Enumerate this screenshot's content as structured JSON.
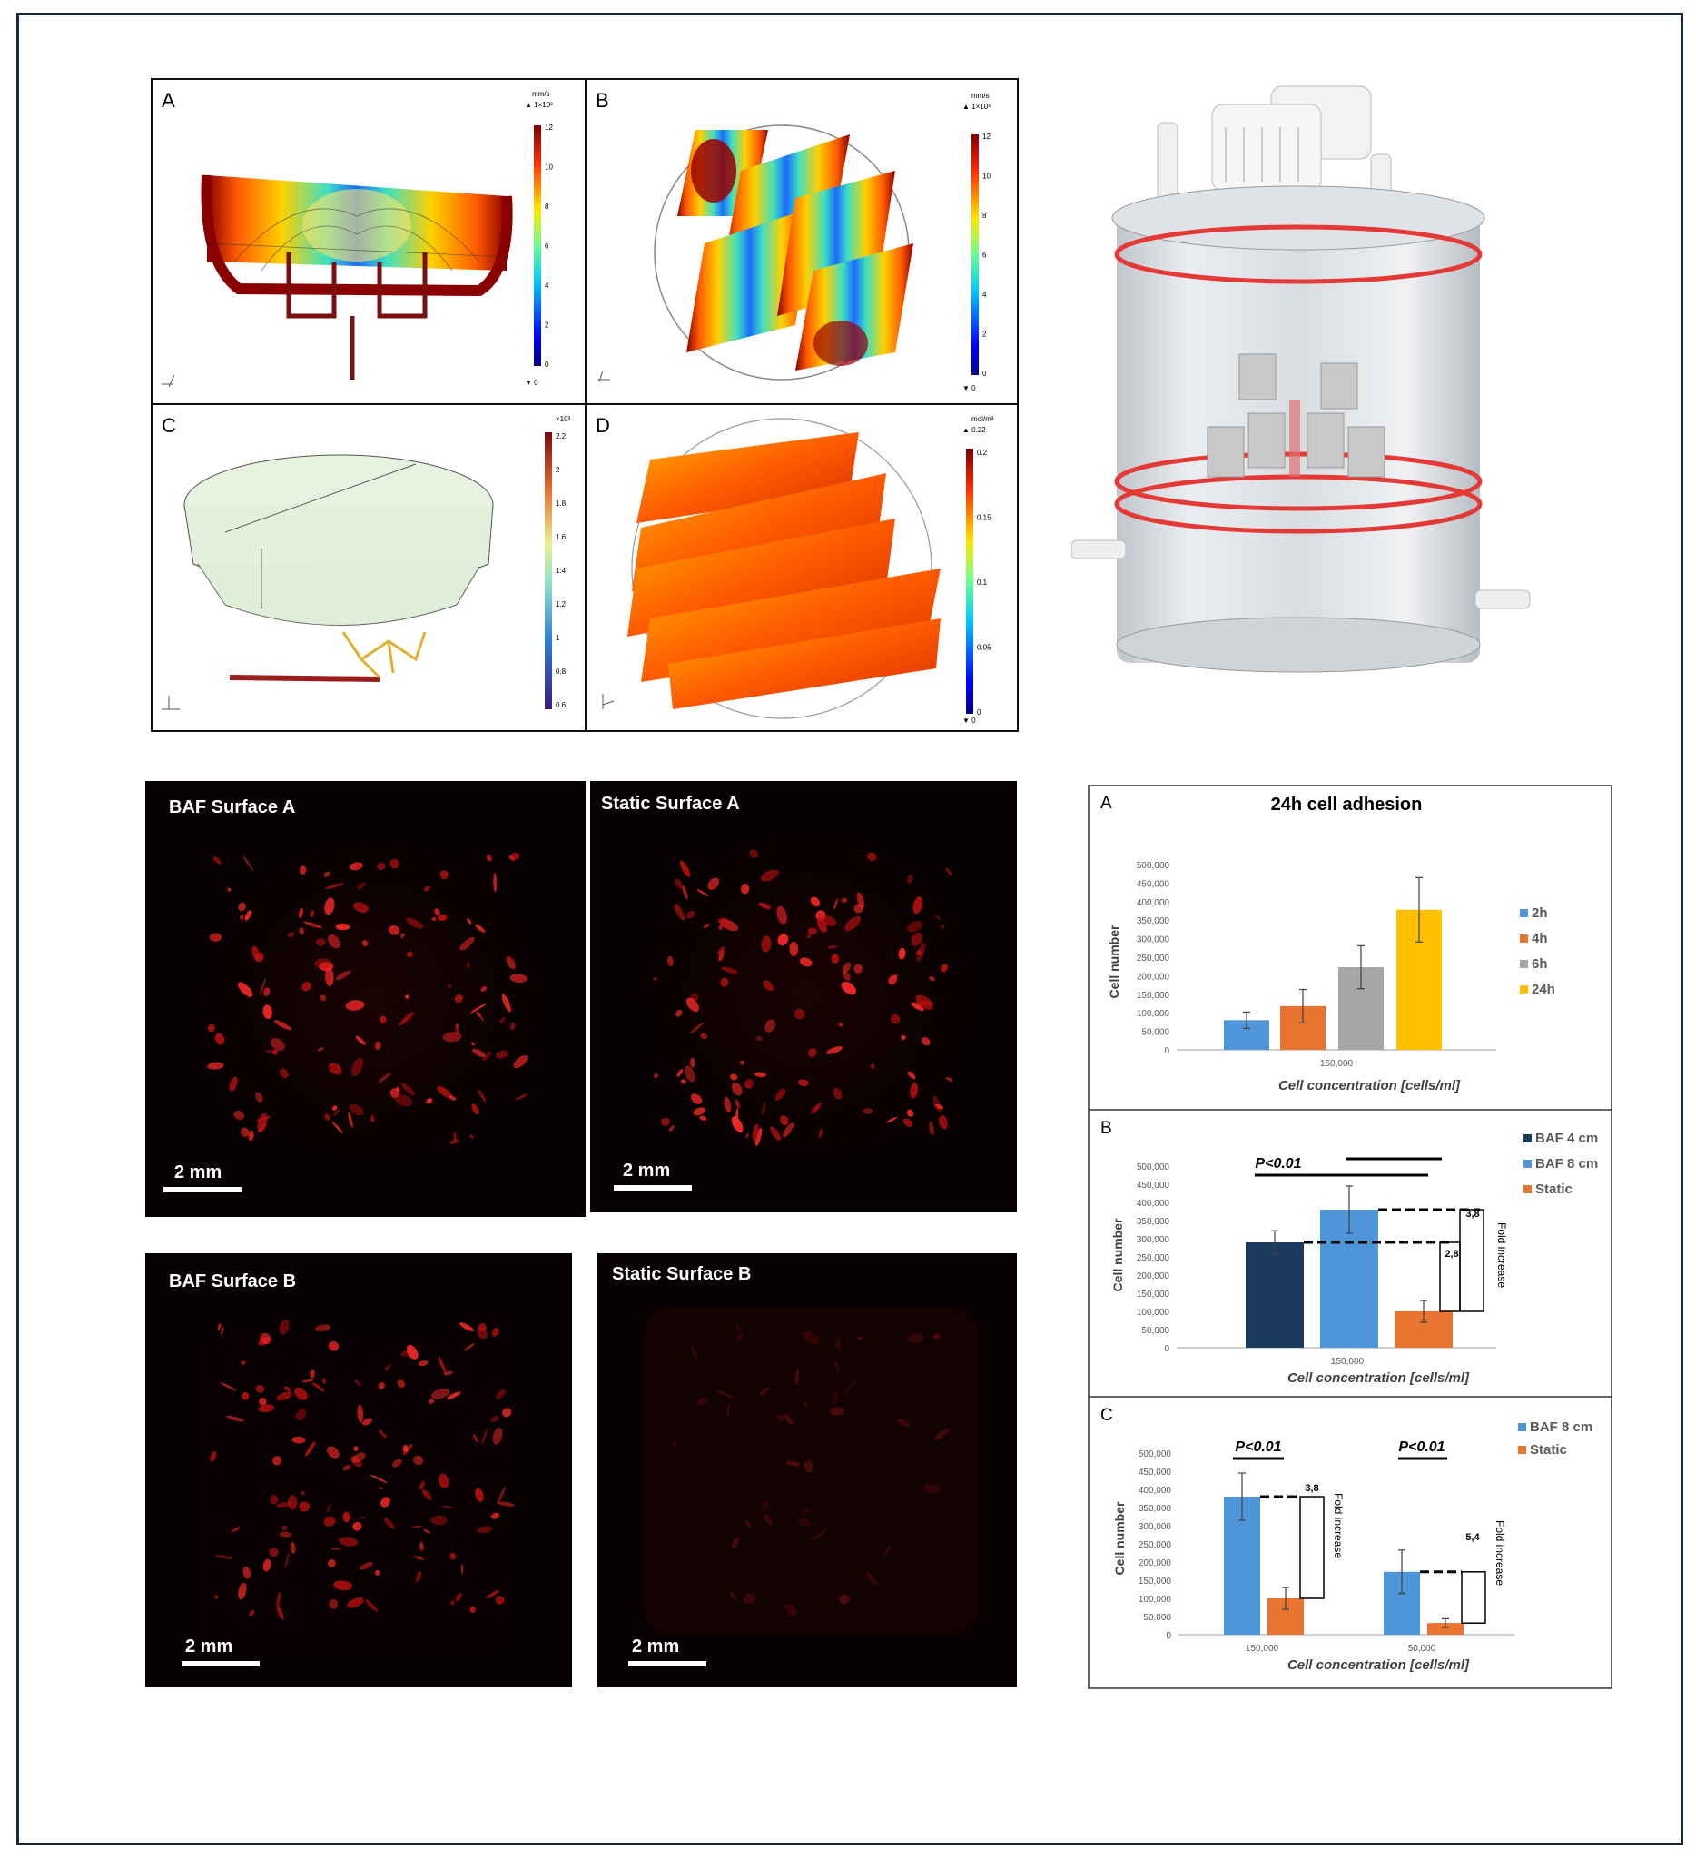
{
  "simulation": {
    "A": {
      "letter": "A",
      "unit": "mm/s",
      "max_label": "▲ 1×10³",
      "ticks": [
        "12",
        "10",
        "8",
        "6",
        "4",
        "2",
        "0"
      ],
      "min_label": "▼ 0"
    },
    "B": {
      "letter": "B",
      "unit": "mm/s",
      "max_label": "▲ 1×10³",
      "ticks": [
        "12",
        "10",
        "8",
        "6",
        "4",
        "2",
        "0"
      ],
      "min_label": "▼ 0"
    },
    "C": {
      "letter": "C",
      "unit": "",
      "max_label": "×10³",
      "ticks": [
        "2.2",
        "2",
        "1.8",
        "1.6",
        "1.4",
        "1.2",
        "1",
        "0.8",
        "0.6"
      ],
      "min_label": ""
    },
    "D": {
      "letter": "D",
      "unit": "mol/m³",
      "max_label": "▲ 0.22",
      "ticks": [
        "0.2",
        "0.15",
        "0.1",
        "0.05",
        "0"
      ],
      "min_label": "▼ 0"
    }
  },
  "microscopy": [
    {
      "title": "BAF Surface A",
      "scale": "2 mm"
    },
    {
      "title": "Static Surface A",
      "scale": "2 mm"
    },
    {
      "title": "BAF Surface B",
      "scale": "2 mm"
    },
    {
      "title": "Static Surface B",
      "scale": "2 mm"
    }
  ],
  "colors": {
    "c2h": "#4e95d9",
    "c4h": "#e8742f",
    "c6h": "#a6a6a6",
    "c24h": "#ffc000",
    "baf4": "#1a3a5e",
    "baf8": "#4e95d9",
    "static": "#e8742f"
  },
  "chart_data": [
    {
      "type": "bar",
      "panel": "A",
      "title": "24h cell adhesion",
      "xlabel": "Cell concentration [cells/ml]",
      "ylabel": "Cell number",
      "categories": [
        "150,000"
      ],
      "yticks": [
        "0",
        "50,000",
        "100,000",
        "150,000",
        "200,000",
        "250,000",
        "300,000",
        "350,000",
        "400,000",
        "450,000",
        "500,000"
      ],
      "ylim": [
        0,
        500000
      ],
      "series": [
        {
          "name": "2h",
          "values": [
            80000
          ],
          "errors": [
            22000
          ]
        },
        {
          "name": "4h",
          "values": [
            118000
          ],
          "errors": [
            45000
          ]
        },
        {
          "name": "6h",
          "values": [
            223000
          ],
          "errors": [
            58000
          ]
        },
        {
          "name": "24h",
          "values": [
            378000
          ],
          "errors": [
            87000
          ]
        }
      ],
      "legend": "right"
    },
    {
      "type": "bar",
      "panel": "B",
      "title": "",
      "xlabel": "Cell concentration [cells/ml]",
      "ylabel": "Cell number",
      "categories": [
        "150,000"
      ],
      "yticks": [
        "0",
        "50,000",
        "100,000",
        "150,000",
        "200,000",
        "250,000",
        "300,000",
        "350,000",
        "400,000",
        "450,000",
        "500,000"
      ],
      "ylim": [
        0,
        500000
      ],
      "series": [
        {
          "name": "BAF 4 cm",
          "values": [
            290000
          ],
          "errors": [
            32000
          ]
        },
        {
          "name": "BAF 8 cm",
          "values": [
            380000
          ],
          "errors": [
            65000
          ]
        },
        {
          "name": "Static",
          "values": [
            100000
          ],
          "errors": [
            30000
          ]
        }
      ],
      "annotations": {
        "significance": "P<0.01",
        "fold_label": "Fold increase",
        "fold_values": [
          "3,8",
          "2,8"
        ]
      },
      "legend": "top-right"
    },
    {
      "type": "bar",
      "panel": "C",
      "title": "",
      "xlabel": "Cell concentration [cells/ml]",
      "ylabel": "Cell number",
      "categories": [
        "150,000",
        "50,000"
      ],
      "yticks": [
        "0",
        "50,000",
        "100,000",
        "150,000",
        "200,000",
        "250,000",
        "300,000",
        "350,000",
        "400,000",
        "450,000",
        "500,000"
      ],
      "ylim": [
        0,
        500000
      ],
      "series": [
        {
          "name": "BAF 8 cm",
          "values": [
            380000,
            173000
          ],
          "errors": [
            65000,
            60000
          ]
        },
        {
          "name": "Static",
          "values": [
            100000,
            32000
          ],
          "errors": [
            30000,
            12000
          ]
        }
      ],
      "annotations": {
        "significance": [
          "P<0.01",
          "P<0.01"
        ],
        "fold_label": "Fold increase",
        "fold_values": [
          "3,8",
          "5,4"
        ]
      },
      "legend": "top-right"
    }
  ]
}
